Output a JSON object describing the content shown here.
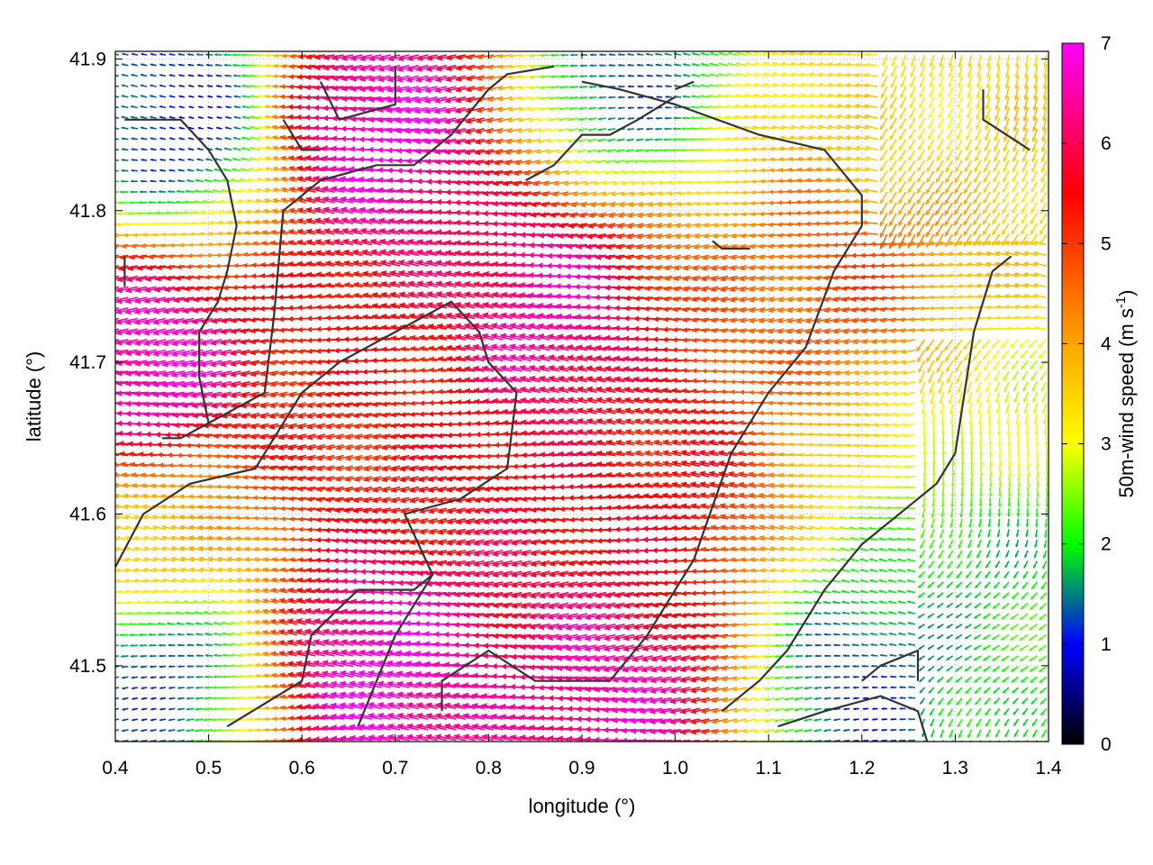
{
  "chart_data": {
    "type": "vector-field",
    "xlabel": "longitude (°)",
    "ylabel": "latitude (°)",
    "colorbar_label": "50m-wind speed (m s",
    "colorbar_label_sup": "-1",
    "colorbar_label_end": ")",
    "xlim": [
      0.4,
      1.4
    ],
    "ylim": [
      41.45,
      41.905
    ],
    "x_ticks": [
      "0.4",
      "0.5",
      "0.6",
      "0.7",
      "0.8",
      "0.9",
      "1.0",
      "1.1",
      "1.2",
      "1.3",
      "1.4"
    ],
    "x_tick_values": [
      0.4,
      0.5,
      0.6,
      0.7,
      0.8,
      0.9,
      1.0,
      1.1,
      1.2,
      1.3,
      1.4
    ],
    "y_ticks": [
      "41.5",
      "41.6",
      "41.7",
      "41.8",
      "41.9"
    ],
    "y_tick_values": [
      41.5,
      41.6,
      41.7,
      41.8,
      41.9
    ],
    "colorbar": {
      "range": [
        0,
        7
      ],
      "ticks": [
        "0",
        "1",
        "2",
        "3",
        "4",
        "5",
        "6",
        "7"
      ],
      "tick_values": [
        0,
        1,
        2,
        3,
        4,
        5,
        6,
        7
      ],
      "colormap": [
        "#000000",
        "#0000ff",
        "#00ff00",
        "#ffff00",
        "#ffa500",
        "#ff0000",
        "#ff00ff"
      ],
      "colormap_positions": [
        0,
        1.0,
        2.0,
        3.0,
        4.0,
        5.5,
        7.0
      ]
    },
    "grid": "dotted",
    "wind_field": {
      "grid_spacing_deg": 0.0167,
      "dominant_direction": "westward (east wind)",
      "speed_regions": [
        {
          "lon": 0.7,
          "lat": 41.85,
          "speed": 6.8
        },
        {
          "lon": 0.88,
          "lat": 41.74,
          "speed": 6.5
        },
        {
          "lon": 0.45,
          "lat": 41.7,
          "speed": 6.8
        },
        {
          "lon": 0.7,
          "lat": 41.5,
          "speed": 6.8
        },
        {
          "lon": 0.95,
          "lat": 41.48,
          "speed": 6.5
        },
        {
          "lon": 0.7,
          "lat": 41.65,
          "speed": 5.3
        },
        {
          "lon": 1.0,
          "lat": 41.62,
          "speed": 5.5
        },
        {
          "lon": 1.2,
          "lat": 41.75,
          "speed": 4.8
        },
        {
          "lon": 1.3,
          "lat": 41.65,
          "speed": 3.0
        },
        {
          "lon": 1.32,
          "lat": 41.58,
          "speed": 1.8
        },
        {
          "lon": 1.2,
          "lat": 41.49,
          "speed": 1.2
        },
        {
          "lon": 0.45,
          "lat": 41.5,
          "speed": 1.2
        },
        {
          "lon": 0.47,
          "lat": 41.86,
          "speed": 1.0
        },
        {
          "lon": 0.95,
          "lat": 41.89,
          "speed": 1.3
        },
        {
          "lon": 0.45,
          "lat": 41.58,
          "speed": 3.8
        },
        {
          "lon": 1.25,
          "lat": 41.88,
          "speed": 3.3
        }
      ]
    },
    "contours": [
      [
        [
          0.4,
          41.565
        ],
        [
          0.43,
          41.6
        ],
        [
          0.48,
          41.62
        ],
        [
          0.55,
          41.63
        ],
        [
          0.6,
          41.68
        ],
        [
          0.64,
          41.7
        ],
        [
          0.7,
          41.72
        ],
        [
          0.76,
          41.74
        ],
        [
          0.79,
          41.72
        ],
        [
          0.8,
          41.7
        ],
        [
          0.83,
          41.68
        ],
        [
          0.82,
          41.63
        ],
        [
          0.77,
          41.61
        ],
        [
          0.71,
          41.6
        ],
        [
          0.74,
          41.56
        ],
        [
          0.7,
          41.52
        ],
        [
          0.66,
          41.46
        ]
      ],
      [
        [
          0.52,
          41.46
        ],
        [
          0.6,
          41.49
        ],
        [
          0.61,
          41.52
        ],
        [
          0.66,
          41.55
        ],
        [
          0.72,
          41.55
        ],
        [
          0.74,
          41.56
        ]
      ],
      [
        [
          0.75,
          41.47
        ],
        [
          0.75,
          41.49
        ],
        [
          0.8,
          41.51
        ],
        [
          0.85,
          41.49
        ],
        [
          0.93,
          41.49
        ],
        [
          0.97,
          41.52
        ],
        [
          1.02,
          41.57
        ],
        [
          1.06,
          41.64
        ],
        [
          1.1,
          41.68
        ],
        [
          1.14,
          41.71
        ],
        [
          1.17,
          41.76
        ],
        [
          1.2,
          41.79
        ],
        [
          1.2,
          41.81
        ],
        [
          1.16,
          41.84
        ],
        [
          1.09,
          41.85
        ],
        [
          1.0,
          41.87
        ],
        [
          0.94,
          41.88
        ],
        [
          0.9,
          41.885
        ]
      ],
      [
        [
          0.41,
          41.75
        ],
        [
          0.41,
          41.77
        ]
      ],
      [
        [
          0.5,
          41.66
        ],
        [
          0.56,
          41.68
        ],
        [
          0.57,
          41.73
        ],
        [
          0.58,
          41.8
        ],
        [
          0.62,
          41.82
        ],
        [
          0.68,
          41.83
        ],
        [
          0.72,
          41.83
        ],
        [
          0.76,
          41.85
        ],
        [
          0.8,
          41.88
        ],
        [
          0.82,
          41.89
        ],
        [
          0.87,
          41.895
        ]
      ],
      [
        [
          0.41,
          41.86
        ],
        [
          0.47,
          41.86
        ],
        [
          0.5,
          41.84
        ],
        [
          0.52,
          41.82
        ],
        [
          0.53,
          41.79
        ],
        [
          0.52,
          41.76
        ],
        [
          0.51,
          41.74
        ],
        [
          0.49,
          41.72
        ],
        [
          0.49,
          41.69
        ],
        [
          0.5,
          41.66
        ]
      ],
      [
        [
          0.5,
          41.66
        ],
        [
          0.47,
          41.65
        ],
        [
          0.45,
          41.65
        ]
      ],
      [
        [
          0.62,
          41.885
        ],
        [
          0.64,
          41.86
        ],
        [
          0.67,
          41.865
        ],
        [
          0.7,
          41.87
        ],
        [
          0.7,
          41.895
        ]
      ],
      [
        [
          0.58,
          41.86
        ],
        [
          0.6,
          41.84
        ],
        [
          0.62,
          41.84
        ]
      ],
      [
        [
          0.84,
          41.82
        ],
        [
          0.87,
          41.83
        ],
        [
          0.9,
          41.85
        ],
        [
          0.93,
          41.85
        ],
        [
          0.96,
          41.86
        ],
        [
          1.0,
          41.875
        ]
      ],
      [
        [
          1.0,
          41.88
        ],
        [
          1.02,
          41.885
        ]
      ],
      [
        [
          1.05,
          41.47
        ],
        [
          1.09,
          41.49
        ],
        [
          1.12,
          41.51
        ],
        [
          1.16,
          41.55
        ],
        [
          1.2,
          41.58
        ],
        [
          1.24,
          41.6
        ],
        [
          1.28,
          41.62
        ],
        [
          1.3,
          41.64
        ],
        [
          1.31,
          41.68
        ],
        [
          1.32,
          41.72
        ],
        [
          1.34,
          41.76
        ],
        [
          1.36,
          41.77
        ]
      ],
      [
        [
          1.2,
          41.49
        ],
        [
          1.22,
          41.5
        ],
        [
          1.26,
          41.51
        ],
        [
          1.26,
          41.49
        ]
      ],
      [
        [
          1.11,
          41.46
        ],
        [
          1.16,
          41.47
        ],
        [
          1.22,
          41.48
        ],
        [
          1.26,
          41.47
        ],
        [
          1.27,
          41.45
        ]
      ],
      [
        [
          1.33,
          41.88
        ],
        [
          1.33,
          41.86
        ],
        [
          1.38,
          41.84
        ]
      ],
      [
        [
          1.04,
          41.78
        ],
        [
          1.05,
          41.775
        ],
        [
          1.08,
          41.775
        ]
      ]
    ]
  }
}
